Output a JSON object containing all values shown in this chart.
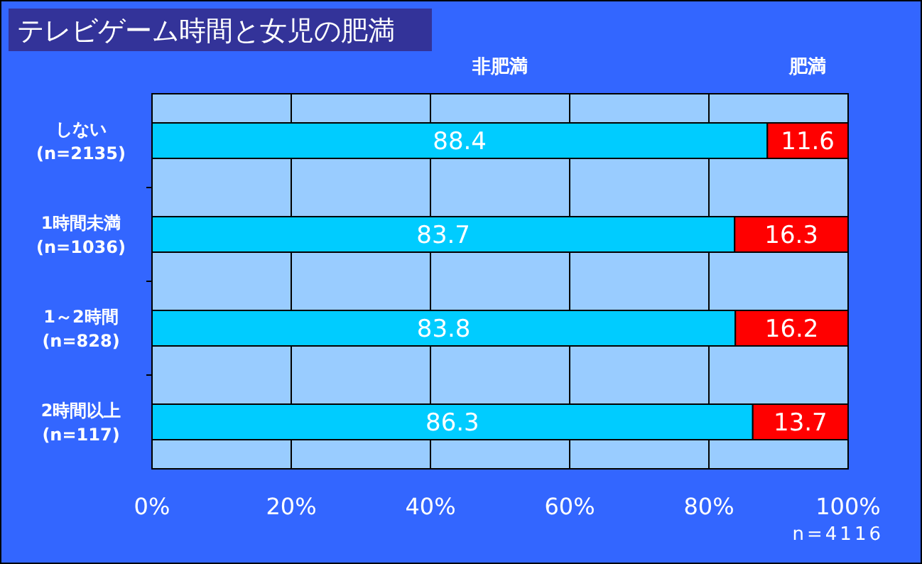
{
  "chart_data": {
    "type": "bar",
    "orientation": "horizontal",
    "stacked": true,
    "title": "テレビゲーム時間と女児の肥満",
    "categories": [
      "しない\n(n=2135)",
      "1時間未満\n(n=1036)",
      "1～2時間\n(n=828)",
      "2時間以上\n(n=117)"
    ],
    "series": [
      {
        "name": "非肥満",
        "color": "#00ccff",
        "values": [
          88.4,
          83.7,
          83.8,
          86.3
        ]
      },
      {
        "name": "肥満",
        "color": "#ff0000",
        "values": [
          11.6,
          16.3,
          16.2,
          13.7
        ]
      }
    ],
    "xlim": [
      0,
      100
    ],
    "xticks": [
      {
        "value": 0,
        "label": "0%"
      },
      {
        "value": 20,
        "label": "20%"
      },
      {
        "value": 40,
        "label": "40%"
      },
      {
        "value": 60,
        "label": "60%"
      },
      {
        "value": 80,
        "label": "80%"
      },
      {
        "value": 100,
        "label": "100%"
      }
    ],
    "grid": "x",
    "legend": "top",
    "data_labels": true,
    "annotations": [
      "n=4116"
    ]
  }
}
